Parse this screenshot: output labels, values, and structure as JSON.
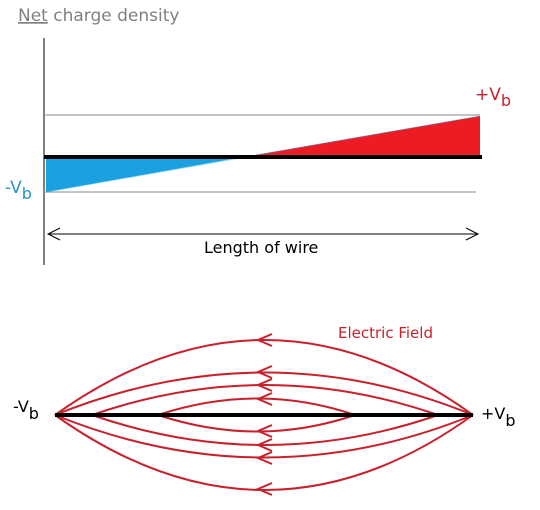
{
  "title": {
    "underlined": "Net",
    "rest": " charge density"
  },
  "top_diagram": {
    "neg_label": {
      "main": "-V",
      "sub": "b"
    },
    "pos_label": {
      "main": "+V",
      "sub": "b"
    },
    "axis_label": "Length of wire",
    "colors": {
      "negative": "#1ba1e2",
      "positive": "#ed1c24",
      "axis": "#808080",
      "wire": "#000000"
    }
  },
  "bottom_diagram": {
    "field_label": "Electric Field",
    "neg_label": {
      "main": "-V",
      "sub": "b"
    },
    "pos_label": {
      "main": "+V",
      "sub": "b"
    },
    "colors": {
      "field": "#c8202c",
      "wire": "#000000"
    }
  }
}
